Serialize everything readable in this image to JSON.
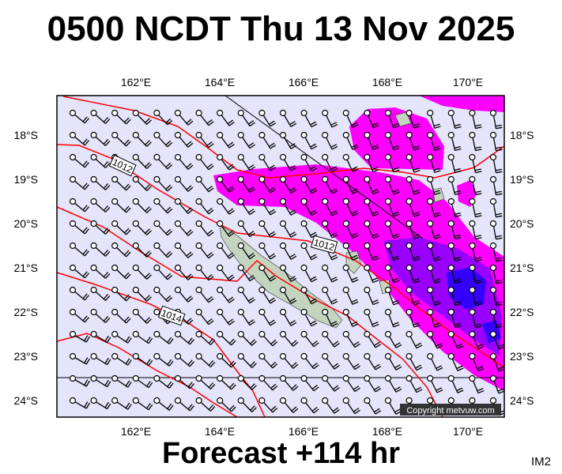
{
  "title": "0500 NCDT Thu 13 Nov 2025",
  "footer": "Forecast +114 hr",
  "image_code": "IM2",
  "copyright": "Copyright metvuw.com",
  "map": {
    "lon_ticks": [
      "162°E",
      "164°E",
      "166°E",
      "168°E",
      "170°E"
    ],
    "lat_ticks": [
      "18°S",
      "19°S",
      "20°S",
      "21°S",
      "22°S",
      "23°S",
      "24°S"
    ],
    "isobar_labels": [
      "1012",
      "1012",
      "1014"
    ],
    "colors": {
      "ocean": "#e4e4fb",
      "precip_light": "#ff00ff",
      "precip_mid": "#9900ff",
      "precip_heavy": "#3300ff",
      "isobar": "#ff0000",
      "land": "#c4d4bf"
    }
  }
}
